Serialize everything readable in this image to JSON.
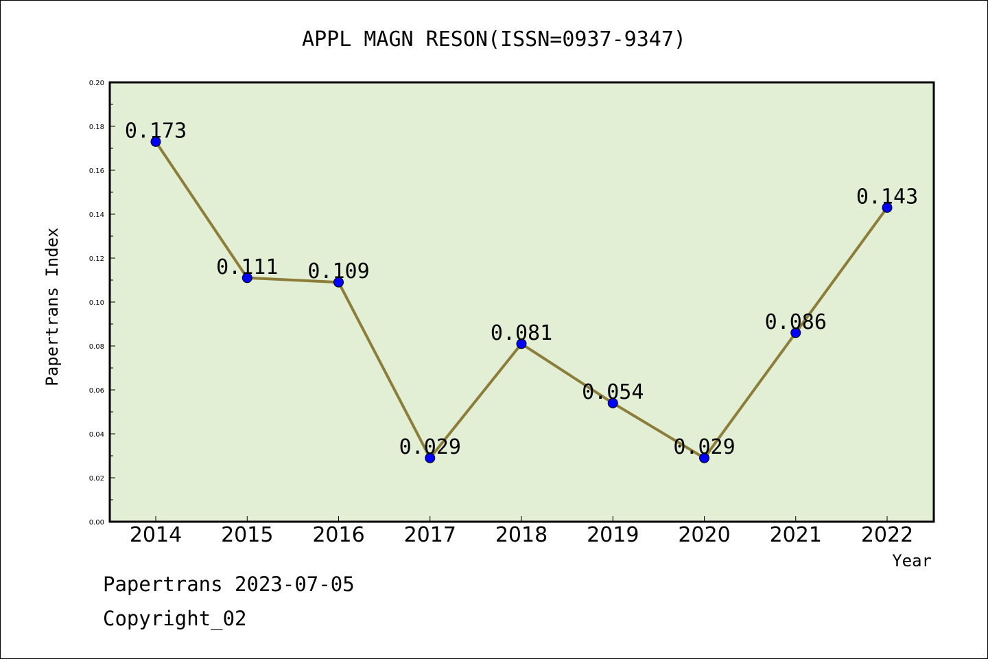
{
  "chart_data": {
    "type": "line",
    "title": "APPL MAGN RESON(ISSN=0937-9347)",
    "xlabel": "Year",
    "ylabel": "Papertrans Index",
    "categories": [
      "2014",
      "2015",
      "2016",
      "2017",
      "2018",
      "2019",
      "2020",
      "2021",
      "2022"
    ],
    "values": [
      0.173,
      0.111,
      0.109,
      0.029,
      0.081,
      0.054,
      0.029,
      0.086,
      0.143
    ],
    "data_labels": [
      "0.173",
      "0.111",
      "0.109",
      "0.029",
      "0.081",
      "0.054",
      "0.029",
      "0.086",
      "0.143"
    ],
    "ylim": [
      0,
      0.2
    ],
    "yticks": [
      "0.00",
      "0.02",
      "0.04",
      "0.06",
      "0.08",
      "0.10",
      "0.12",
      "0.14",
      "0.16",
      "0.18",
      "0.20"
    ],
    "grid": false,
    "colors": {
      "plot_background": "#e2efd4",
      "line": "#8c7d3a",
      "marker": "#0000ff"
    }
  },
  "footer": {
    "line1": "Papertrans 2023-07-05",
    "line2": "Copyright_02"
  }
}
